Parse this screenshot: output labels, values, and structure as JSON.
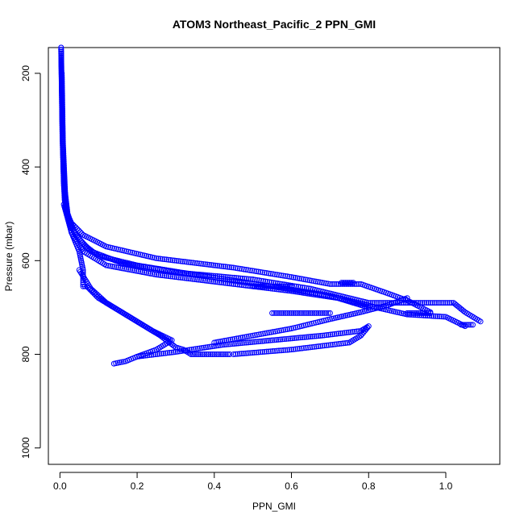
{
  "chart_data": {
    "type": "scatter",
    "title": "ATOM3 Northeast_Pacific_2 PPN_GMI",
    "xlabel": "PPN_GMI",
    "ylabel": "Pressure (mbar)",
    "xlim": [
      -0.03,
      1.14
    ],
    "ylim": [
      1035,
      145
    ],
    "y_reversed": true,
    "x_ticks": [
      0.0,
      0.2,
      0.4,
      0.6,
      0.8,
      1.0
    ],
    "x_tick_labels": [
      "0.0",
      "0.2",
      "0.4",
      "0.6",
      "0.8",
      "1.0"
    ],
    "y_ticks": [
      200,
      400,
      600,
      800,
      1000
    ],
    "y_tick_labels": [
      "200",
      "400",
      "600",
      "800",
      "1000"
    ],
    "grid": false,
    "marker": "open-circle",
    "color": "#0000ff",
    "series": [
      {
        "values": [
          [
            0.003,
            145
          ],
          [
            0.004,
            200
          ],
          [
            0.005,
            260
          ],
          [
            0.006,
            320
          ],
          [
            0.008,
            380
          ],
          [
            0.01,
            430
          ],
          [
            0.012,
            470
          ],
          [
            0.018,
            500
          ],
          [
            0.03,
            520
          ],
          [
            0.06,
            545
          ],
          [
            0.12,
            570
          ],
          [
            0.25,
            595
          ],
          [
            0.45,
            615
          ],
          [
            0.6,
            635
          ],
          [
            0.7,
            650
          ],
          [
            0.78,
            650
          ],
          [
            0.85,
            670
          ],
          [
            0.9,
            685
          ],
          [
            0.96,
            710
          ]
        ]
      },
      {
        "values": [
          [
            0.003,
            145
          ],
          [
            0.005,
            250
          ],
          [
            0.007,
            350
          ],
          [
            0.01,
            440
          ],
          [
            0.015,
            490
          ],
          [
            0.03,
            530
          ],
          [
            0.06,
            565
          ],
          [
            0.1,
            590
          ],
          [
            0.2,
            610
          ],
          [
            0.35,
            630
          ],
          [
            0.55,
            655
          ],
          [
            0.7,
            675
          ],
          [
            0.82,
            700
          ],
          [
            0.9,
            715
          ],
          [
            1.0,
            720
          ],
          [
            1.05,
            740
          ]
        ]
      },
      {
        "values": [
          [
            0.003,
            150
          ],
          [
            0.006,
            300
          ],
          [
            0.01,
            430
          ],
          [
            0.02,
            500
          ],
          [
            0.04,
            545
          ],
          [
            0.08,
            580
          ],
          [
            0.16,
            605
          ],
          [
            0.3,
            625
          ],
          [
            0.5,
            640
          ],
          [
            0.65,
            660
          ],
          [
            0.8,
            690
          ],
          [
            0.95,
            690
          ],
          [
            1.02,
            690
          ],
          [
            1.05,
            710
          ],
          [
            1.09,
            730
          ]
        ]
      },
      {
        "values": [
          [
            0.005,
            200
          ],
          [
            0.008,
            350
          ],
          [
            0.015,
            480
          ],
          [
            0.03,
            540
          ],
          [
            0.06,
            580
          ],
          [
            0.12,
            610
          ],
          [
            0.25,
            630
          ],
          [
            0.45,
            650
          ],
          [
            0.6,
            665
          ],
          [
            0.72,
            680
          ],
          [
            0.8,
            700
          ]
        ]
      },
      {
        "values": [
          [
            0.01,
            480
          ],
          [
            0.03,
            540
          ],
          [
            0.05,
            580
          ],
          [
            0.06,
            620
          ],
          [
            0.06,
            655
          ],
          [
            0.07,
            655
          ],
          [
            0.1,
            680
          ],
          [
            0.14,
            700
          ],
          [
            0.2,
            730
          ],
          [
            0.26,
            760
          ],
          [
            0.3,
            785
          ],
          [
            0.32,
            790
          ],
          [
            0.34,
            800
          ],
          [
            0.4,
            800
          ],
          [
            0.44,
            800
          ]
        ]
      },
      {
        "values": [
          [
            0.05,
            620
          ],
          [
            0.08,
            660
          ],
          [
            0.12,
            690
          ],
          [
            0.18,
            720
          ],
          [
            0.24,
            750
          ],
          [
            0.29,
            770
          ],
          [
            0.25,
            790
          ],
          [
            0.2,
            805
          ],
          [
            0.17,
            815
          ],
          [
            0.14,
            820
          ]
        ]
      },
      {
        "values": [
          [
            0.2,
            805
          ],
          [
            0.3,
            795
          ],
          [
            0.42,
            780
          ],
          [
            0.55,
            770
          ],
          [
            0.68,
            760
          ],
          [
            0.78,
            750
          ],
          [
            0.8,
            740
          ],
          [
            0.78,
            760
          ],
          [
            0.75,
            775
          ],
          [
            0.6,
            790
          ],
          [
            0.45,
            800
          ]
        ]
      },
      {
        "values": [
          [
            0.4,
            775
          ],
          [
            0.5,
            760
          ],
          [
            0.6,
            745
          ],
          [
            0.7,
            725
          ],
          [
            0.78,
            710
          ],
          [
            0.85,
            695
          ],
          [
            0.9,
            680
          ]
        ]
      },
      {
        "values": [
          [
            0.5,
            655
          ],
          [
            0.55,
            655
          ],
          [
            0.6,
            655
          ]
        ]
      },
      {
        "values": [
          [
            0.55,
            712
          ],
          [
            0.6,
            712
          ],
          [
            0.65,
            712
          ],
          [
            0.7,
            712
          ]
        ]
      },
      {
        "values": [
          [
            0.73,
            647
          ],
          [
            0.76,
            647
          ]
        ]
      },
      {
        "values": [
          [
            0.9,
            712
          ],
          [
            0.96,
            712
          ]
        ]
      },
      {
        "values": [
          [
            1.04,
            737
          ],
          [
            1.07,
            737
          ]
        ]
      }
    ]
  }
}
